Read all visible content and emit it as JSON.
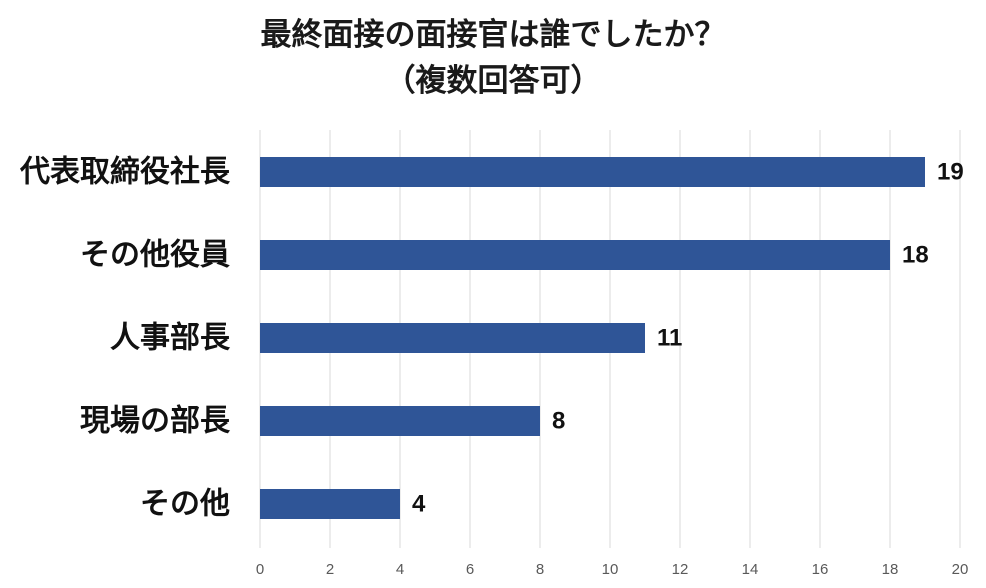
{
  "chart_data": {
    "type": "bar",
    "orientation": "horizontal",
    "title": "最終面接の面接官は誰でしたか？",
    "subtitle": "（複数回答可）",
    "categories": [
      "代表取締役社長",
      "その他役員",
      "人事部長",
      "現場の部長",
      "その他"
    ],
    "values": [
      19,
      18,
      11,
      8,
      4
    ],
    "xlim": [
      0,
      20
    ],
    "xticks": [
      0,
      2,
      4,
      6,
      8,
      10,
      12,
      14,
      16,
      18,
      20
    ],
    "xlabel": "",
    "ylabel": "",
    "grid": "vertical",
    "legend": "none",
    "bar_color": "#2F5597",
    "data_labels": true
  }
}
